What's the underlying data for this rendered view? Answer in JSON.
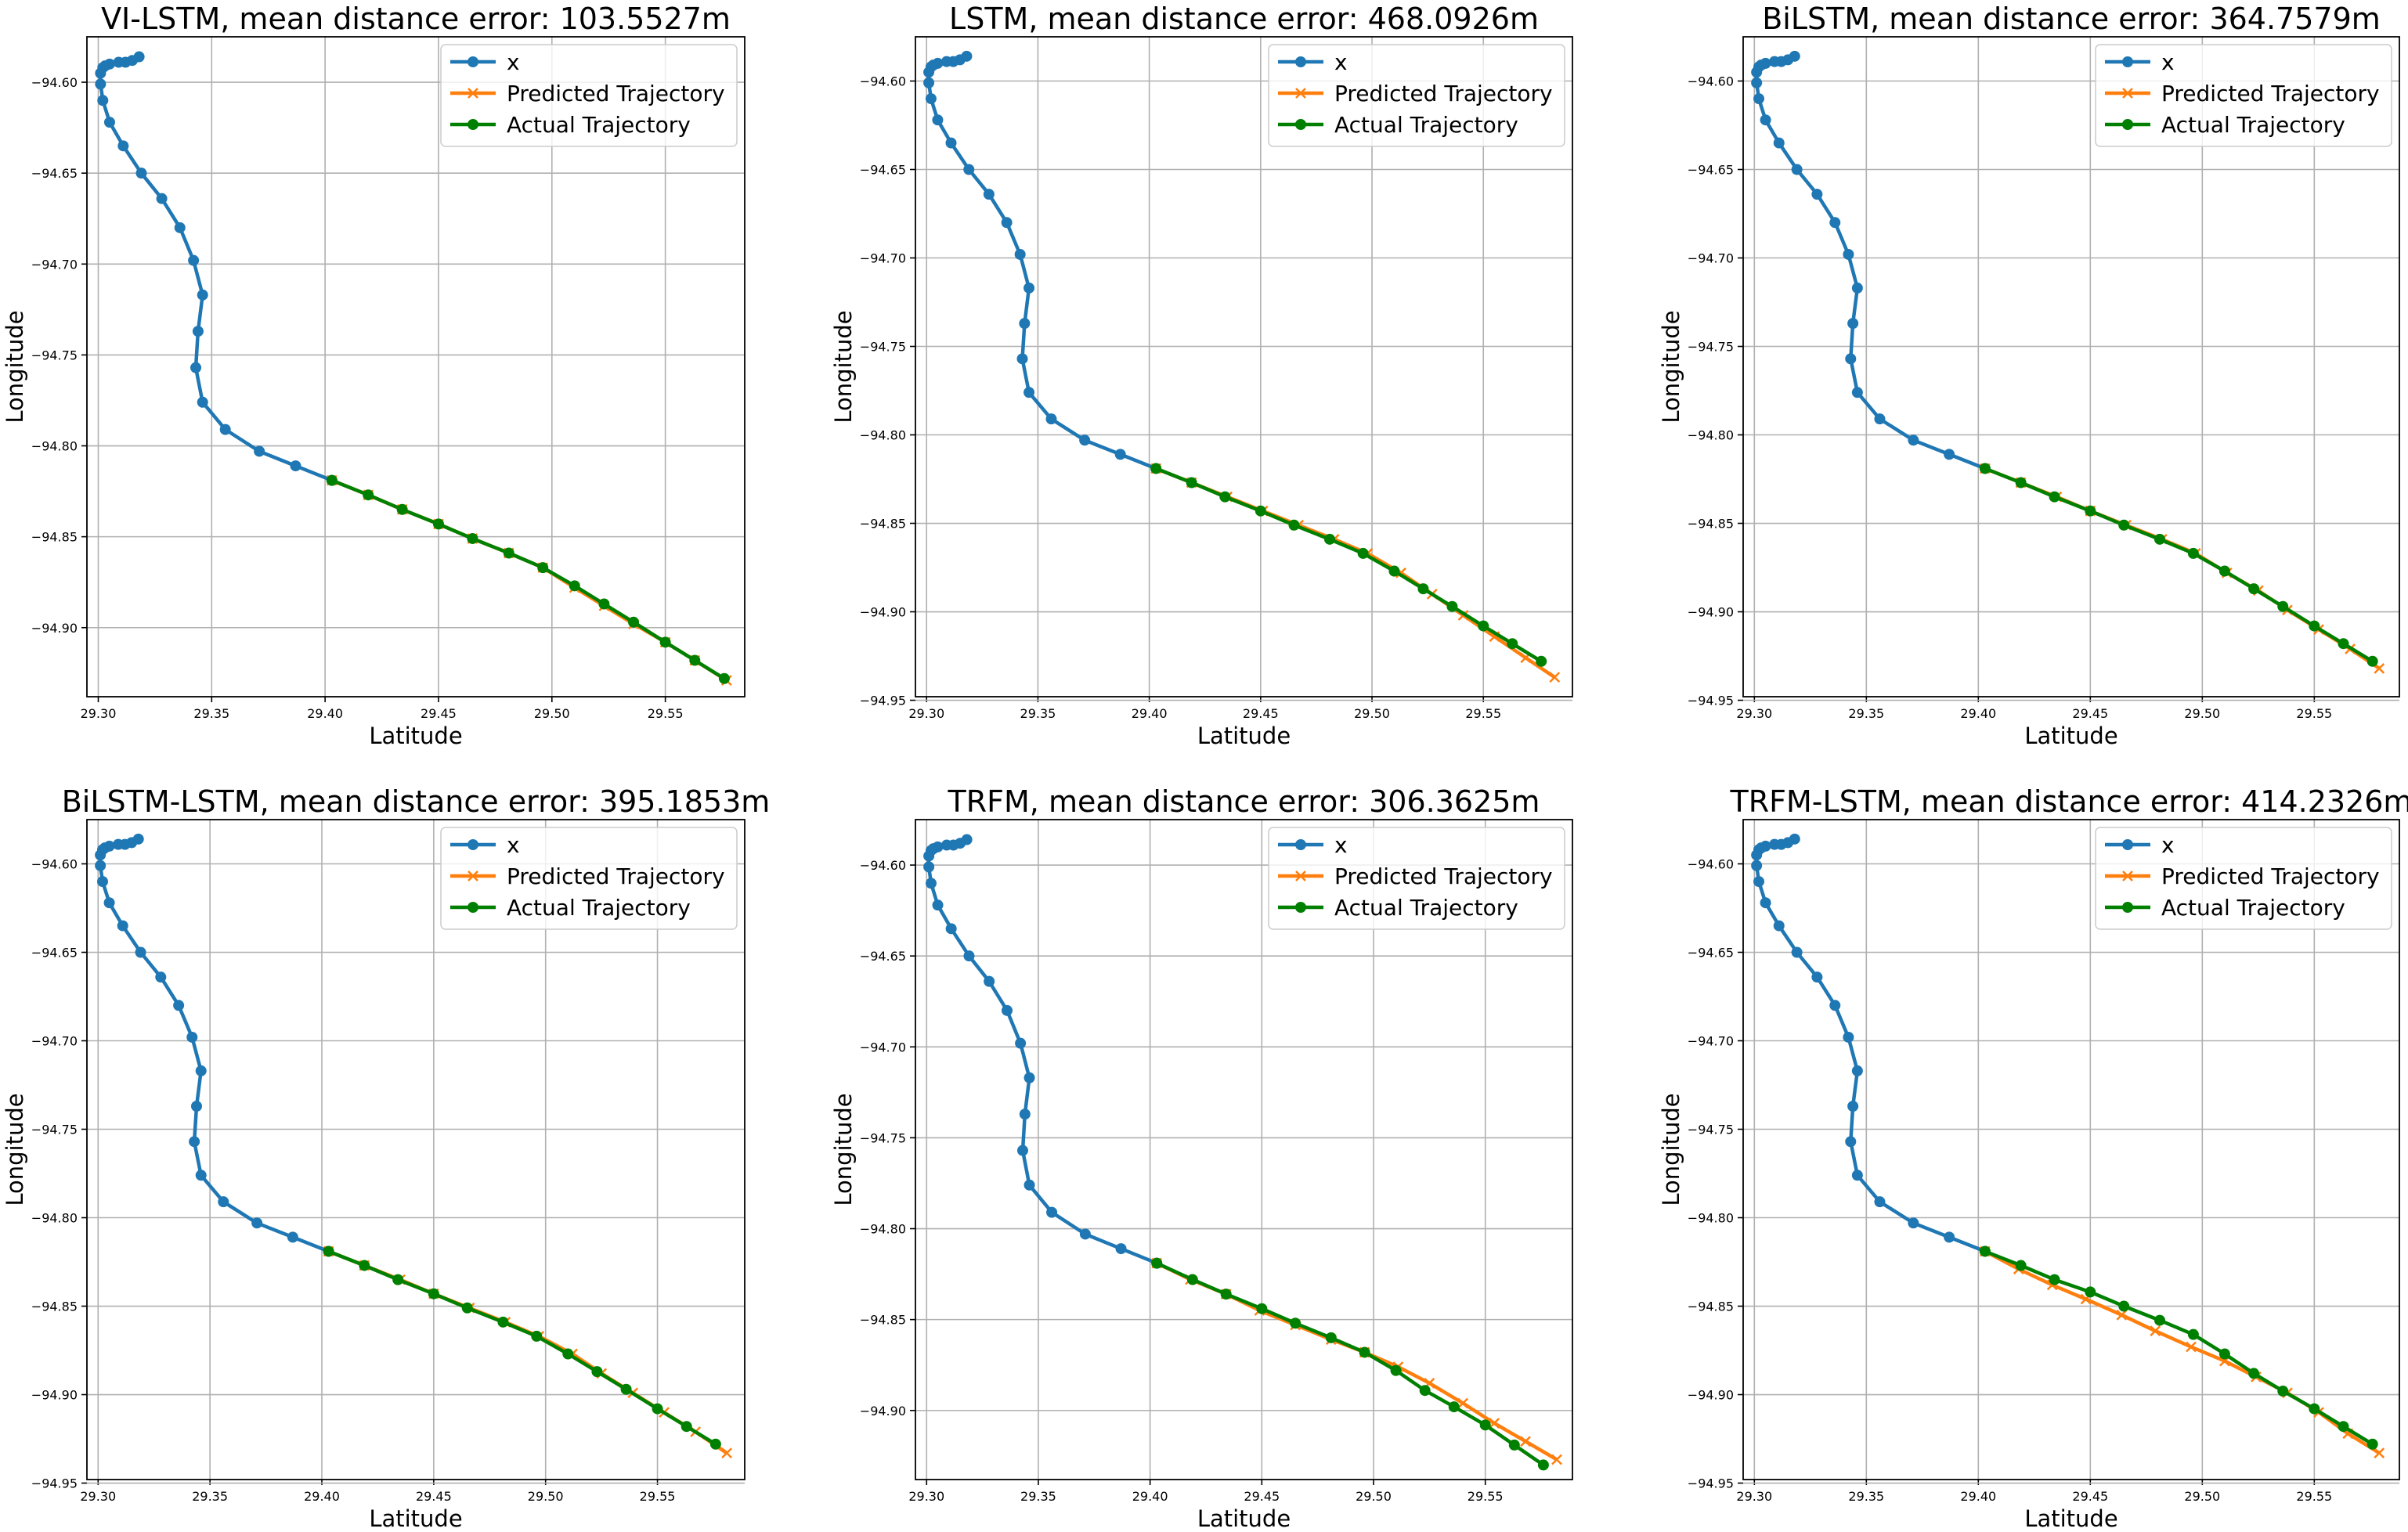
{
  "colors": {
    "x": "#1f77b4",
    "predicted": "#ff7f0e",
    "actual": "#008000",
    "grid": "#b0b0b0",
    "axis": "#000000"
  },
  "chart_data": [
    {
      "type": "line",
      "title": "VI-LSTM, mean distance error: 103.5527m",
      "xlabel": "Latitude",
      "ylabel": "Longitude",
      "xlim": [
        29.295,
        29.585
      ],
      "ylim": [
        -94.938,
        -94.575
      ],
      "xticks": [
        "29.30",
        "29.35",
        "29.40",
        "29.45",
        "29.50",
        "29.55"
      ],
      "yticks": [
        "-94.60",
        "-94.65",
        "-94.70",
        "-94.75",
        "-94.80",
        "-94.85",
        "-94.90"
      ],
      "grid": true,
      "legend_position": "upper-right",
      "legend": [
        "x",
        "Predicted Trajectory",
        "Actual Trajectory"
      ],
      "series": {
        "x": {
          "name": "x",
          "x": [
            29.318,
            29.315,
            29.312,
            29.309,
            29.305,
            29.303,
            29.302,
            29.301,
            29.301,
            29.302,
            29.305,
            29.311,
            29.319,
            29.328,
            29.336,
            29.342,
            29.346,
            29.344,
            29.343,
            29.346,
            29.356,
            29.371,
            29.387,
            29.403
          ],
          "y": [
            -94.586,
            -94.588,
            -94.589,
            -94.589,
            -94.59,
            -94.591,
            -94.592,
            -94.595,
            -94.601,
            -94.61,
            -94.622,
            -94.635,
            -94.65,
            -94.664,
            -94.68,
            -94.698,
            -94.717,
            -94.737,
            -94.757,
            -94.776,
            -94.791,
            -94.803,
            -94.811,
            -94.819
          ]
        },
        "predicted": {
          "name": "Predicted Trajectory",
          "x": [
            29.403,
            29.419,
            29.434,
            29.45,
            29.465,
            29.481,
            29.496,
            29.51,
            29.523,
            29.536,
            29.55,
            29.563,
            29.577
          ],
          "y": [
            -94.819,
            -94.827,
            -94.835,
            -94.843,
            -94.851,
            -94.859,
            -94.867,
            -94.878,
            -94.888,
            -94.898,
            -94.908,
            -94.918,
            -94.929
          ]
        },
        "actual": {
          "name": "Actual Trajectory",
          "x": [
            29.403,
            29.419,
            29.434,
            29.45,
            29.465,
            29.481,
            29.496,
            29.51,
            29.523,
            29.536,
            29.55,
            29.563,
            29.576
          ],
          "y": [
            -94.819,
            -94.827,
            -94.835,
            -94.843,
            -94.851,
            -94.859,
            -94.867,
            -94.877,
            -94.887,
            -94.897,
            -94.908,
            -94.918,
            -94.928
          ]
        }
      }
    },
    {
      "type": "line",
      "title": "LSTM, mean distance error: 468.0926m",
      "xlabel": "Latitude",
      "ylabel": "Longitude",
      "xlim": [
        29.295,
        29.59
      ],
      "ylim": [
        -94.948,
        -94.575
      ],
      "xticks": [
        "29.30",
        "29.35",
        "29.40",
        "29.45",
        "29.50",
        "29.55"
      ],
      "yticks": [
        "-94.60",
        "-94.65",
        "-94.70",
        "-94.75",
        "-94.80",
        "-94.85",
        "-94.90",
        "-94.95"
      ],
      "grid": true,
      "legend_position": "upper-right",
      "legend": [
        "x",
        "Predicted Trajectory",
        "Actual Trajectory"
      ],
      "series": {
        "x": {
          "name": "x",
          "x": [
            29.318,
            29.315,
            29.312,
            29.309,
            29.305,
            29.303,
            29.302,
            29.301,
            29.301,
            29.302,
            29.305,
            29.311,
            29.319,
            29.328,
            29.336,
            29.342,
            29.346,
            29.344,
            29.343,
            29.346,
            29.356,
            29.371,
            29.387,
            29.403
          ],
          "y": [
            -94.586,
            -94.588,
            -94.589,
            -94.589,
            -94.59,
            -94.591,
            -94.592,
            -94.595,
            -94.601,
            -94.61,
            -94.622,
            -94.635,
            -94.65,
            -94.664,
            -94.68,
            -94.698,
            -94.717,
            -94.737,
            -94.757,
            -94.776,
            -94.791,
            -94.803,
            -94.811,
            -94.819
          ]
        },
        "predicted": {
          "name": "Predicted Trajectory",
          "x": [
            29.403,
            29.419,
            29.435,
            29.451,
            29.467,
            29.483,
            29.498,
            29.513,
            29.527,
            29.541,
            29.555,
            29.569,
            29.582
          ],
          "y": [
            -94.819,
            -94.827,
            -94.835,
            -94.843,
            -94.851,
            -94.859,
            -94.867,
            -94.878,
            -94.89,
            -94.902,
            -94.914,
            -94.926,
            -94.937
          ]
        },
        "actual": {
          "name": "Actual Trajectory",
          "x": [
            29.403,
            29.419,
            29.434,
            29.45,
            29.465,
            29.481,
            29.496,
            29.51,
            29.523,
            29.536,
            29.55,
            29.563,
            29.576
          ],
          "y": [
            -94.819,
            -94.827,
            -94.835,
            -94.843,
            -94.851,
            -94.859,
            -94.867,
            -94.877,
            -94.887,
            -94.897,
            -94.908,
            -94.918,
            -94.928
          ]
        }
      }
    },
    {
      "type": "line",
      "title": "BiLSTM, mean distance error: 364.7579m",
      "xlabel": "Latitude",
      "ylabel": "Longitude",
      "xlim": [
        29.295,
        29.588
      ],
      "ylim": [
        -94.948,
        -94.575
      ],
      "xticks": [
        "29.30",
        "29.35",
        "29.40",
        "29.45",
        "29.50",
        "29.55"
      ],
      "yticks": [
        "-94.60",
        "-94.65",
        "-94.70",
        "-94.75",
        "-94.80",
        "-94.85",
        "-94.90",
        "-94.95"
      ],
      "grid": true,
      "legend_position": "upper-right",
      "legend": [
        "x",
        "Predicted Trajectory",
        "Actual Trajectory"
      ],
      "series": {
        "x": {
          "name": "x",
          "x": [
            29.318,
            29.315,
            29.312,
            29.309,
            29.305,
            29.303,
            29.302,
            29.301,
            29.301,
            29.302,
            29.305,
            29.311,
            29.319,
            29.328,
            29.336,
            29.342,
            29.346,
            29.344,
            29.343,
            29.346,
            29.356,
            29.371,
            29.387,
            29.403
          ],
          "y": [
            -94.586,
            -94.588,
            -94.589,
            -94.589,
            -94.59,
            -94.591,
            -94.592,
            -94.595,
            -94.601,
            -94.61,
            -94.622,
            -94.635,
            -94.65,
            -94.664,
            -94.68,
            -94.698,
            -94.717,
            -94.737,
            -94.757,
            -94.776,
            -94.791,
            -94.803,
            -94.811,
            -94.819
          ]
        },
        "predicted": {
          "name": "Predicted Trajectory",
          "x": [
            29.403,
            29.419,
            29.435,
            29.45,
            29.466,
            29.482,
            29.497,
            29.511,
            29.525,
            29.538,
            29.552,
            29.566,
            29.579
          ],
          "y": [
            -94.819,
            -94.827,
            -94.835,
            -94.843,
            -94.851,
            -94.859,
            -94.867,
            -94.878,
            -94.888,
            -94.899,
            -94.91,
            -94.921,
            -94.932
          ]
        },
        "actual": {
          "name": "Actual Trajectory",
          "x": [
            29.403,
            29.419,
            29.434,
            29.45,
            29.465,
            29.481,
            29.496,
            29.51,
            29.523,
            29.536,
            29.55,
            29.563,
            29.576
          ],
          "y": [
            -94.819,
            -94.827,
            -94.835,
            -94.843,
            -94.851,
            -94.859,
            -94.867,
            -94.877,
            -94.887,
            -94.897,
            -94.908,
            -94.918,
            -94.928
          ]
        }
      }
    },
    {
      "type": "line",
      "title": "BiLSTM-LSTM, mean distance error: 395.1853m",
      "xlabel": "Latitude",
      "ylabel": "Longitude",
      "xlim": [
        29.295,
        29.589
      ],
      "ylim": [
        -94.948,
        -94.575
      ],
      "xticks": [
        "29.30",
        "29.35",
        "29.40",
        "29.45",
        "29.50",
        "29.55"
      ],
      "yticks": [
        "-94.60",
        "-94.65",
        "-94.70",
        "-94.75",
        "-94.80",
        "-94.85",
        "-94.90",
        "-94.95"
      ],
      "grid": true,
      "legend_position": "upper-right",
      "legend": [
        "x",
        "Predicted Trajectory",
        "Actual Trajectory"
      ],
      "series": {
        "x": {
          "name": "x",
          "x": [
            29.318,
            29.315,
            29.312,
            29.309,
            29.305,
            29.303,
            29.302,
            29.301,
            29.301,
            29.302,
            29.305,
            29.311,
            29.319,
            29.328,
            29.336,
            29.342,
            29.346,
            29.344,
            29.343,
            29.346,
            29.356,
            29.371,
            29.387,
            29.403
          ],
          "y": [
            -94.586,
            -94.588,
            -94.589,
            -94.589,
            -94.59,
            -94.591,
            -94.592,
            -94.595,
            -94.601,
            -94.61,
            -94.622,
            -94.635,
            -94.65,
            -94.664,
            -94.68,
            -94.698,
            -94.717,
            -94.737,
            -94.757,
            -94.776,
            -94.791,
            -94.803,
            -94.811,
            -94.819
          ]
        },
        "predicted": {
          "name": "Predicted Trajectory",
          "x": [
            29.403,
            29.419,
            29.435,
            29.45,
            29.466,
            29.482,
            29.497,
            29.512,
            29.525,
            29.539,
            29.553,
            29.567,
            29.581
          ],
          "y": [
            -94.819,
            -94.827,
            -94.835,
            -94.843,
            -94.851,
            -94.859,
            -94.867,
            -94.877,
            -94.888,
            -94.899,
            -94.91,
            -94.921,
            -94.933
          ]
        },
        "actual": {
          "name": "Actual Trajectory",
          "x": [
            29.403,
            29.419,
            29.434,
            29.45,
            29.465,
            29.481,
            29.496,
            29.51,
            29.523,
            29.536,
            29.55,
            29.563,
            29.576
          ],
          "y": [
            -94.819,
            -94.827,
            -94.835,
            -94.843,
            -94.851,
            -94.859,
            -94.867,
            -94.877,
            -94.887,
            -94.897,
            -94.908,
            -94.918,
            -94.928
          ]
        }
      }
    },
    {
      "type": "line",
      "title": "TRFM, mean distance error: 306.3625m",
      "xlabel": "Latitude",
      "ylabel": "Longitude",
      "xlim": [
        29.295,
        29.589
      ],
      "ylim": [
        -94.938,
        -94.575
      ],
      "xticks": [
        "29.30",
        "29.35",
        "29.40",
        "29.45",
        "29.50",
        "29.55"
      ],
      "yticks": [
        "-94.60",
        "-94.65",
        "-94.70",
        "-94.75",
        "-94.80",
        "-94.85",
        "-94.90"
      ],
      "grid": true,
      "legend_position": "upper-right",
      "legend": [
        "x",
        "Predicted Trajectory",
        "Actual Trajectory"
      ],
      "series": {
        "x": {
          "name": "x",
          "x": [
            29.318,
            29.315,
            29.312,
            29.309,
            29.305,
            29.303,
            29.302,
            29.301,
            29.301,
            29.302,
            29.305,
            29.311,
            29.319,
            29.328,
            29.336,
            29.342,
            29.346,
            29.344,
            29.343,
            29.346,
            29.356,
            29.371,
            29.387,
            29.403
          ],
          "y": [
            -94.586,
            -94.588,
            -94.589,
            -94.589,
            -94.59,
            -94.591,
            -94.592,
            -94.595,
            -94.601,
            -94.61,
            -94.622,
            -94.635,
            -94.65,
            -94.664,
            -94.68,
            -94.698,
            -94.717,
            -94.737,
            -94.757,
            -94.776,
            -94.791,
            -94.803,
            -94.811,
            -94.819
          ]
        },
        "predicted": {
          "name": "Predicted Trajectory",
          "x": [
            29.403,
            29.418,
            29.434,
            29.449,
            29.465,
            29.481,
            29.496,
            29.511,
            29.525,
            29.54,
            29.554,
            29.568,
            29.582
          ],
          "y": [
            -94.819,
            -94.828,
            -94.836,
            -94.845,
            -94.853,
            -94.861,
            -94.868,
            -94.876,
            -94.885,
            -94.896,
            -94.907,
            -94.917,
            -94.927
          ]
        },
        "actual": {
          "name": "Actual Trajectory",
          "x": [
            29.403,
            29.419,
            29.434,
            29.45,
            29.465,
            29.481,
            29.496,
            29.51,
            29.523,
            29.536,
            29.55,
            29.563,
            29.576
          ],
          "y": [
            -94.819,
            -94.828,
            -94.836,
            -94.844,
            -94.852,
            -94.86,
            -94.868,
            -94.878,
            -94.889,
            -94.898,
            -94.908,
            -94.919,
            -94.93
          ]
        }
      }
    },
    {
      "type": "line",
      "title": "TRFM-LSTM, mean distance error: 414.2326m",
      "xlabel": "Latitude",
      "ylabel": "Longitude",
      "xlim": [
        29.295,
        29.588
      ],
      "ylim": [
        -94.948,
        -94.575
      ],
      "xticks": [
        "29.30",
        "29.35",
        "29.40",
        "29.45",
        "29.50",
        "29.55"
      ],
      "yticks": [
        "-94.60",
        "-94.65",
        "-94.70",
        "-94.75",
        "-94.80",
        "-94.85",
        "-94.90",
        "-94.95"
      ],
      "grid": true,
      "legend_position": "upper-right",
      "legend": [
        "x",
        "Predicted Trajectory",
        "Actual Trajectory"
      ],
      "series": {
        "x": {
          "name": "x",
          "x": [
            29.318,
            29.315,
            29.312,
            29.309,
            29.305,
            29.303,
            29.302,
            29.301,
            29.301,
            29.302,
            29.305,
            29.311,
            29.319,
            29.328,
            29.336,
            29.342,
            29.346,
            29.344,
            29.343,
            29.346,
            29.356,
            29.371,
            29.387,
            29.403
          ],
          "y": [
            -94.586,
            -94.588,
            -94.589,
            -94.589,
            -94.59,
            -94.591,
            -94.592,
            -94.595,
            -94.601,
            -94.61,
            -94.622,
            -94.635,
            -94.65,
            -94.664,
            -94.68,
            -94.698,
            -94.717,
            -94.737,
            -94.757,
            -94.776,
            -94.791,
            -94.803,
            -94.811,
            -94.819
          ]
        },
        "predicted": {
          "name": "Predicted Trajectory",
          "x": [
            29.403,
            29.418,
            29.433,
            29.448,
            29.464,
            29.479,
            29.495,
            29.51,
            29.524,
            29.538,
            29.552,
            29.565,
            29.579
          ],
          "y": [
            -94.819,
            -94.829,
            -94.838,
            -94.846,
            -94.855,
            -94.864,
            -94.873,
            -94.881,
            -94.89,
            -94.899,
            -94.91,
            -94.922,
            -94.933
          ]
        },
        "actual": {
          "name": "Actual Trajectory",
          "x": [
            29.403,
            29.419,
            29.434,
            29.45,
            29.465,
            29.481,
            29.496,
            29.51,
            29.523,
            29.536,
            29.55,
            29.563,
            29.576
          ],
          "y": [
            -94.819,
            -94.827,
            -94.835,
            -94.842,
            -94.85,
            -94.858,
            -94.866,
            -94.877,
            -94.888,
            -94.898,
            -94.908,
            -94.918,
            -94.928
          ]
        }
      }
    }
  ]
}
